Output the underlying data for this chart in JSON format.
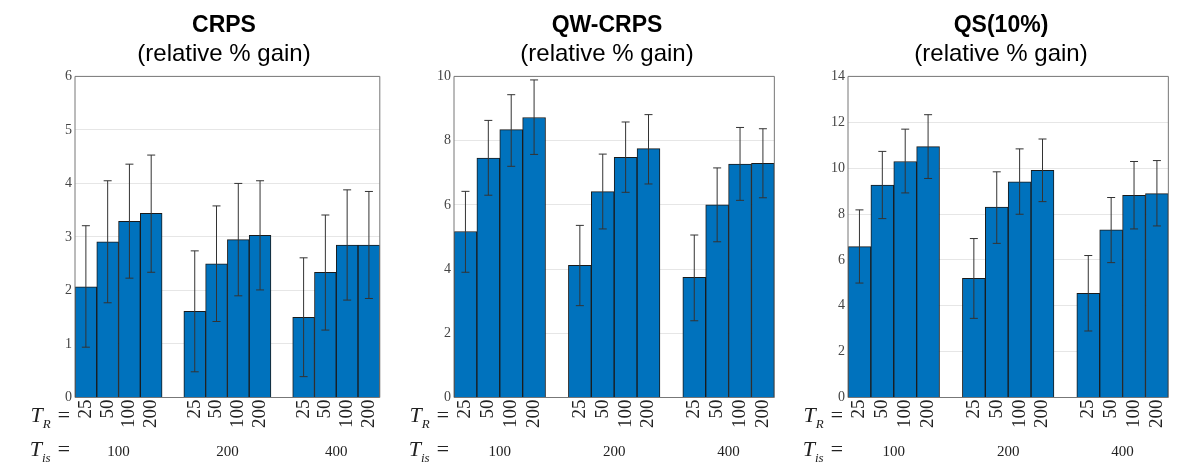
{
  "chart_data": [
    {
      "type": "bar",
      "title": "CRPS",
      "subtitle": "(relative % gain)",
      "categories": [
        "25",
        "50",
        "100",
        "200",
        null,
        "25",
        "50",
        "100",
        "200",
        null,
        "25",
        "50",
        "100",
        "200"
      ],
      "color": "#0072bd",
      "values": [
        2.07,
        2.91,
        3.29,
        3.44,
        null,
        1.61,
        2.5,
        2.95,
        3.03,
        null,
        1.5,
        2.34,
        2.85,
        2.85
      ],
      "errors": [
        [
          0.94,
          3.21
        ],
        [
          1.77,
          4.05
        ],
        [
          2.23,
          4.36
        ],
        [
          2.34,
          4.53
        ],
        null,
        [
          0.48,
          2.74
        ],
        [
          1.42,
          3.58
        ],
        [
          1.9,
          4.0
        ],
        [
          2.01,
          4.05
        ],
        null,
        [
          0.39,
          2.61
        ],
        [
          1.26,
          3.41
        ],
        [
          1.82,
          3.88
        ],
        [
          1.85,
          3.85
        ]
      ],
      "ylim": [
        0,
        6
      ],
      "yticks": [
        0,
        1,
        2,
        3,
        4,
        5,
        6
      ],
      "grid": "y",
      "annotations": [
        "T$_{R}$ =",
        "T$_{is}$ =",
        "100",
        "200",
        "400"
      ]
    },
    {
      "type": "bar",
      "title": "QW-CRPS",
      "subtitle": "(relative % gain)",
      "categories": [
        "25",
        "50",
        "100",
        "200",
        null,
        "25",
        "50",
        "100",
        "200",
        null,
        "25",
        "50",
        "100",
        "200"
      ],
      "color": "#0072bd",
      "values": [
        5.17,
        7.46,
        8.34,
        8.72,
        null,
        4.12,
        6.41,
        7.48,
        7.75,
        null,
        3.74,
        6.0,
        7.27,
        7.29
      ],
      "errors": [
        [
          3.9,
          6.42
        ],
        [
          6.3,
          8.63
        ],
        [
          7.2,
          9.43
        ],
        [
          7.57,
          9.89
        ],
        null,
        [
          2.86,
          5.36
        ],
        [
          5.25,
          7.58
        ],
        [
          6.39,
          8.58
        ],
        [
          6.65,
          8.81
        ],
        null,
        [
          2.39,
          5.06
        ],
        [
          4.85,
          7.15
        ],
        [
          6.14,
          8.41
        ],
        [
          6.22,
          8.37
        ]
      ],
      "ylim": [
        0,
        10
      ],
      "yticks": [
        0,
        2,
        4,
        6,
        8,
        10
      ],
      "grid": "y",
      "annotations": [
        "T$_{R}$ =",
        "T$_{is}$ =",
        "100",
        "200",
        "400"
      ]
    },
    {
      "type": "bar",
      "title": "QS(10%)",
      "subtitle": "(relative % gain)",
      "categories": [
        "25",
        "50",
        "100",
        "200",
        null,
        "25",
        "50",
        "100",
        "200",
        null,
        "25",
        "50",
        "100",
        "200"
      ],
      "color": "#0072bd",
      "values": [
        6.58,
        9.26,
        10.29,
        10.94,
        null,
        5.2,
        8.3,
        9.4,
        9.9,
        null,
        4.54,
        7.31,
        8.82,
        8.89
      ],
      "errors": [
        [
          4.99,
          8.18
        ],
        [
          7.8,
          10.73
        ],
        [
          8.92,
          11.7
        ],
        [
          9.55,
          12.33
        ],
        null,
        [
          3.45,
          6.93
        ],
        [
          6.72,
          9.84
        ],
        [
          7.99,
          10.84
        ],
        [
          8.54,
          11.27
        ],
        null,
        [
          2.9,
          6.19
        ],
        [
          5.88,
          8.72
        ],
        [
          7.35,
          10.29
        ],
        [
          7.48,
          10.33
        ]
      ],
      "ylim": [
        0,
        14
      ],
      "yticks": [
        0,
        2,
        4,
        6,
        8,
        10,
        12,
        14
      ],
      "grid": "y",
      "annotations": [
        "T$_{R}$ =",
        "T$_{is}$ =",
        "100",
        "200",
        "400"
      ]
    }
  ]
}
